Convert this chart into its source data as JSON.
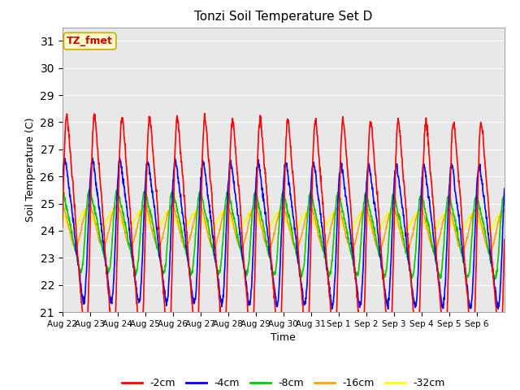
{
  "title": "Tonzi Soil Temperature Set D",
  "xlabel": "Time",
  "ylabel": "Soil Temperature (C)",
  "ylim": [
    21.0,
    31.5
  ],
  "yticks": [
    21.0,
    22.0,
    23.0,
    24.0,
    25.0,
    26.0,
    27.0,
    28.0,
    29.0,
    30.0,
    31.0
  ],
  "series_colors": [
    "red",
    "blue",
    "#00cc00",
    "orange",
    "yellow"
  ],
  "series_labels": [
    "-2cm",
    "-4cm",
    "-8cm",
    "-16cm",
    "-32cm"
  ],
  "annotation_text": "TZ_fmet",
  "annotation_color": "#cc0000",
  "annotation_bg": "#ffffcc",
  "annotation_border": "#ccaa00",
  "n_days": 16,
  "periods_per_day": 96,
  "background_color": "#e8e8e8",
  "series_linewidth": 1.2,
  "base_temp": 24.0,
  "amp_2cm": 4.2,
  "amp_4cm": 2.6,
  "amp_8cm": 1.5,
  "amp_16cm": 0.75,
  "amp_32cm": 0.35,
  "phase_2cm": 0.0,
  "phase_4cm": 0.45,
  "phase_8cm": 1.1,
  "phase_16cm": 1.8,
  "phase_32cm": 2.5
}
